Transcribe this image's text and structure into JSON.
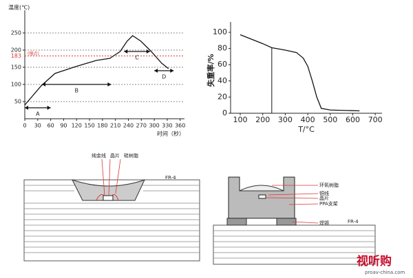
{
  "chart_data": [
    {
      "type": "line",
      "y_label": "温度(℃)",
      "x_label": "时间（秒）",
      "x": [
        0,
        38,
        70,
        118,
        166,
        197,
        221,
        237,
        250,
        269,
        293,
        317,
        333
      ],
      "values": [
        40,
        96,
        132,
        152,
        170,
        176,
        196,
        226,
        242,
        226,
        196,
        162,
        146
      ],
      "color": "#111",
      "xlim": [
        0,
        370
      ],
      "ylim": [
        0,
        300
      ],
      "xticks": [
        0,
        30,
        60,
        90,
        120,
        150,
        180,
        210,
        240,
        270,
        300,
        330,
        360
      ],
      "yticks": [
        50,
        100,
        150,
        200,
        250
      ],
      "grid": true,
      "melting_point": 183,
      "melting_label": "(熔点)",
      "annotations": [
        {
          "text": "A",
          "x": [
            0,
            60
          ],
          "y": 32
        },
        {
          "text": "B",
          "x": [
            40,
            200
          ],
          "y": 100
        },
        {
          "text": "C",
          "x": [
            230,
            290
          ],
          "y": 196
        },
        {
          "text": "D",
          "x": [
            300,
            345
          ],
          "y": 140
        }
      ]
    },
    {
      "type": "line",
      "y_label": "失重率/%",
      "x_label": "T/°C",
      "x": [
        100,
        200,
        240,
        300,
        350,
        380,
        400,
        420,
        440,
        460,
        500,
        630
      ],
      "values": [
        97,
        86,
        81,
        78,
        75,
        68,
        58,
        40,
        20,
        6,
        4,
        3
      ],
      "color": "#111",
      "xlim": [
        57,
        730
      ],
      "ylim": [
        0,
        106
      ],
      "xticks": [
        100,
        200,
        300,
        400,
        500,
        600,
        700
      ],
      "yticks": [
        0,
        20,
        40,
        60,
        80,
        100
      ],
      "grid": false,
      "vline": {
        "x": 240,
        "y": [
          0,
          81
        ]
      }
    }
  ],
  "diagrams": {
    "left": {
      "labels": [
        "纯金线",
        "晶片",
        "硅树脂"
      ],
      "board": "FR-4"
    },
    "right": {
      "labels": [
        "环氧树脂",
        "铜线",
        "晶片",
        "PPA支架",
        "焊锡"
      ],
      "board": "FR-4"
    },
    "watermark": {
      "brand": "视听购",
      "url": "proav-china.com"
    }
  }
}
